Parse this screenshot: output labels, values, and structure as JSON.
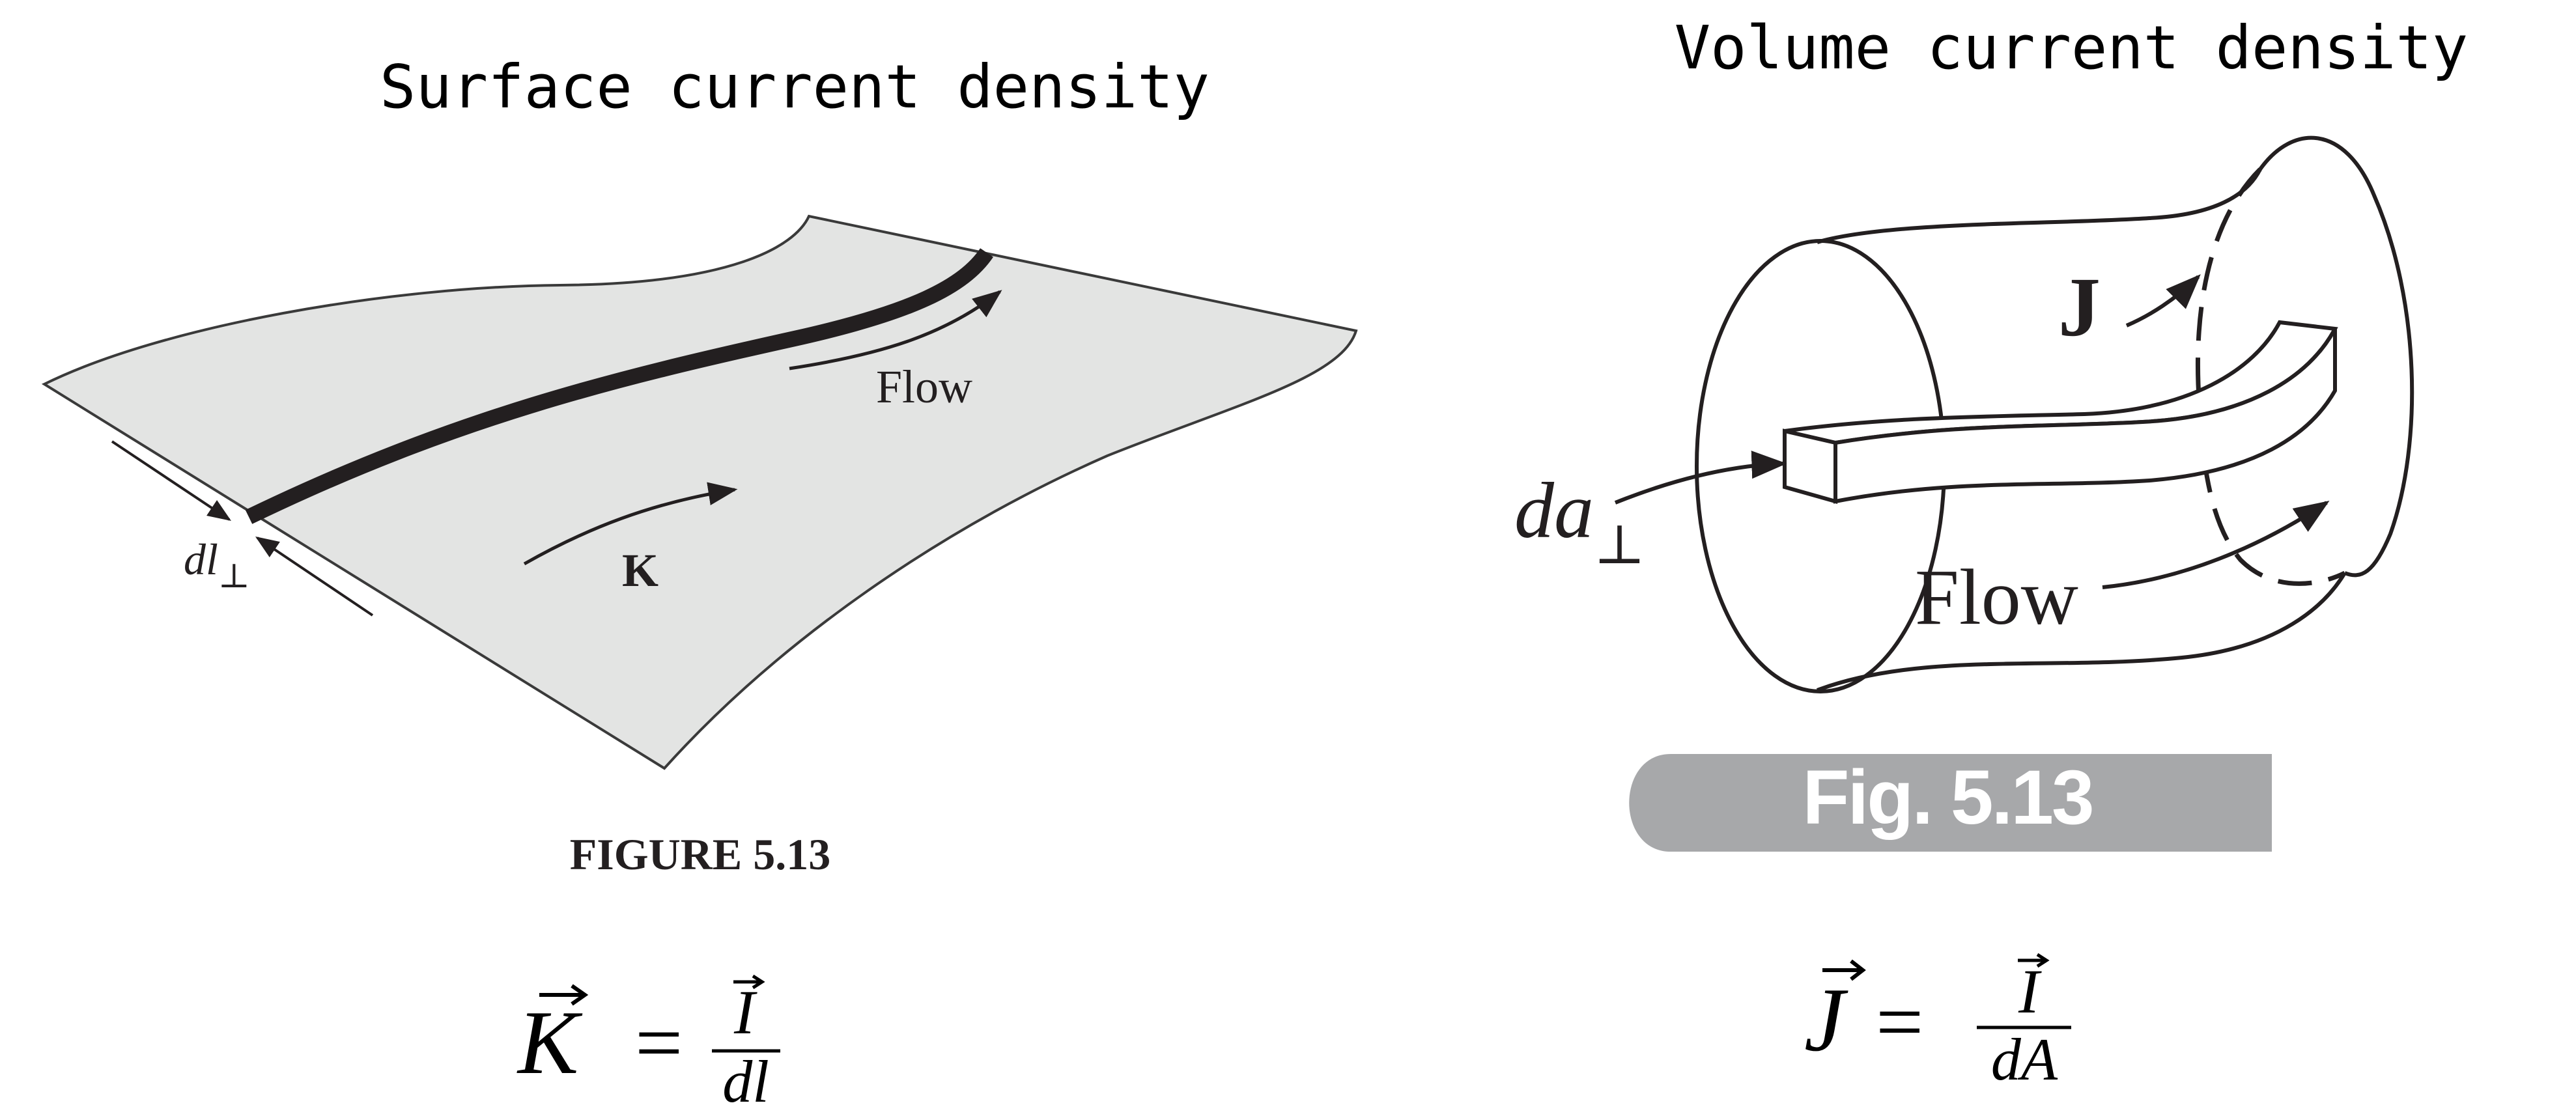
{
  "left_panel": {
    "title": "Surface current density",
    "flow_label": "Flow",
    "vector_label": "K",
    "width_label_base": "dl",
    "width_label_sub": "⊥",
    "figure_caption": "FIGURE 5.13",
    "equation": {
      "lhs": "K",
      "equals": "=",
      "numerator": "I",
      "denominator": "dl"
    }
  },
  "right_panel": {
    "title": "Volume current density",
    "vector_label": "J",
    "area_label_base": "da",
    "area_label_sub": "⊥",
    "flow_label": "Flow",
    "figure_badge": "Fig. 5.13",
    "equation": {
      "lhs": "J",
      "equals": "=",
      "numerator": "I",
      "denominator": "dA"
    }
  },
  "colors": {
    "sheet_fill": "#e3e4e3",
    "badge_fill": "#a7a8aa",
    "badge_text": "#ffffff",
    "ink": "#231f20"
  }
}
